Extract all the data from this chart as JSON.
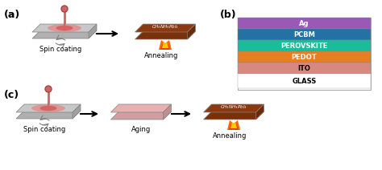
{
  "bg_color": "#ffffff",
  "panel_a_label": "(a)",
  "panel_b_label": "(b)",
  "panel_c_label": "(c)",
  "layers": [
    "Ag",
    "PCBM",
    "PEROVSKITE",
    "PEDOT",
    "ITO",
    "GLASS"
  ],
  "layer_colors": [
    "#9b59b6",
    "#2471a3",
    "#1abc9c",
    "#e67e22",
    "#d98880",
    "#ffffff"
  ],
  "layer_text_colors": [
    "#000000",
    "#000000",
    "#000000",
    "#000000",
    "#000000",
    "#000000"
  ],
  "spin_coating_label": "Spin coating",
  "annealing_label_a": "Annealing",
  "aging_label": "Aging",
  "annealing_label_c": "Annealing",
  "perovskite_formula": "$CH_3NH_3PbI_3$"
}
